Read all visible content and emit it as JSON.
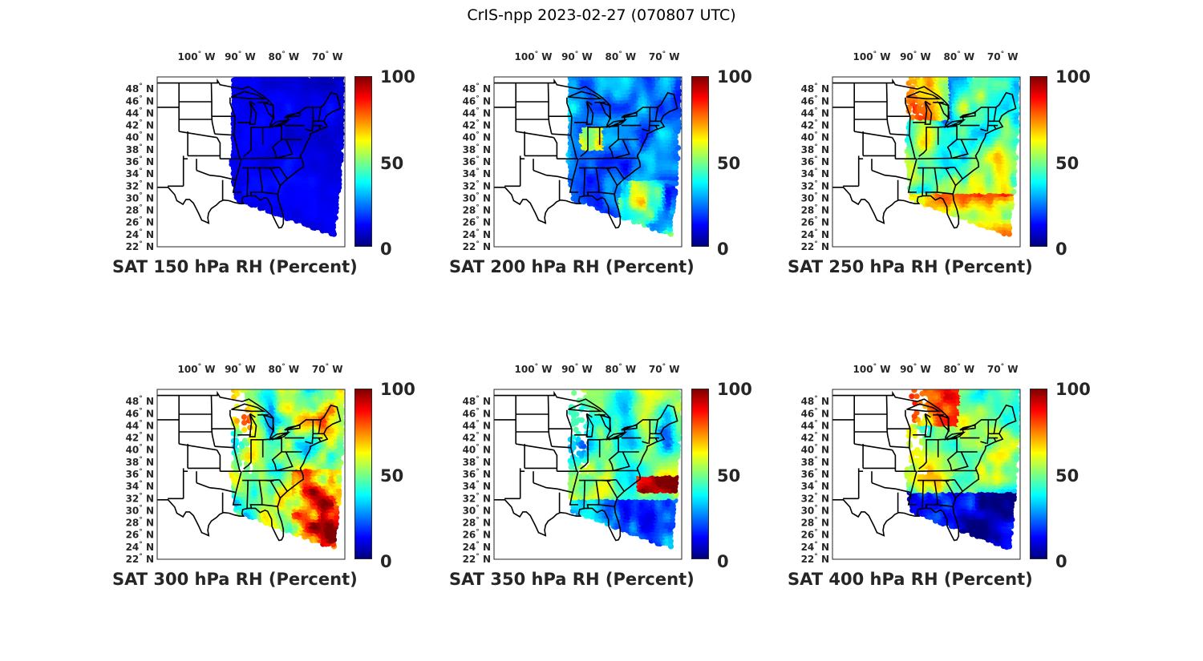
{
  "title": "CrIS-npp 2023-02-27 (070807 UTC)",
  "colors": {
    "jet": [
      "#00007f",
      "#0000ff",
      "#007fff",
      "#00ffff",
      "#7fff7f",
      "#ffff00",
      "#ff7f00",
      "#ff0000",
      "#7f0000"
    ],
    "land_border": "#000000",
    "background": "#ffffff"
  },
  "lon_ticks": [
    {
      "value": -100,
      "deg": "100",
      "hem": "W"
    },
    {
      "value": -90,
      "deg": "90",
      "hem": "W"
    },
    {
      "value": -80,
      "deg": "80",
      "hem": "W"
    },
    {
      "value": -70,
      "deg": "70",
      "hem": "W"
    }
  ],
  "lat_ticks": [
    {
      "value": 48,
      "deg": "48",
      "hem": "N"
    },
    {
      "value": 46,
      "deg": "46",
      "hem": "N"
    },
    {
      "value": 44,
      "deg": "44",
      "hem": "N"
    },
    {
      "value": 42,
      "deg": "42",
      "hem": "N"
    },
    {
      "value": 40,
      "deg": "40",
      "hem": "N"
    },
    {
      "value": 38,
      "deg": "38",
      "hem": "N"
    },
    {
      "value": 36,
      "deg": "36",
      "hem": "N"
    },
    {
      "value": 34,
      "deg": "34",
      "hem": "N"
    },
    {
      "value": 32,
      "deg": "32",
      "hem": "N"
    },
    {
      "value": 30,
      "deg": "30",
      "hem": "N"
    },
    {
      "value": 28,
      "deg": "28",
      "hem": "N"
    },
    {
      "value": 26,
      "deg": "26",
      "hem": "N"
    },
    {
      "value": 24,
      "deg": "24",
      "hem": "N"
    },
    {
      "value": 22,
      "deg": "22",
      "hem": "N"
    }
  ],
  "colorbar": {
    "min": 0,
    "max": 100,
    "ticks": [
      "100",
      "50",
      "0"
    ]
  },
  "map_extent": {
    "lon_min": -109,
    "lon_max": -66,
    "lat_min": 22,
    "lat_max": 50
  },
  "panels": [
    {
      "title": "SAT 150 hPa RH (Percent)",
      "level": 150
    },
    {
      "title": "SAT 200 hPa RH (Percent)",
      "level": 200
    },
    {
      "title": "SAT 250 hPa RH (Percent)",
      "level": 250
    },
    {
      "title": "SAT 300 hPa RH (Percent)",
      "level": 300
    },
    {
      "title": "SAT 350 hPa RH (Percent)",
      "level": 350
    },
    {
      "title": "SAT 400 hPa RH (Percent)",
      "level": 400
    }
  ]
}
